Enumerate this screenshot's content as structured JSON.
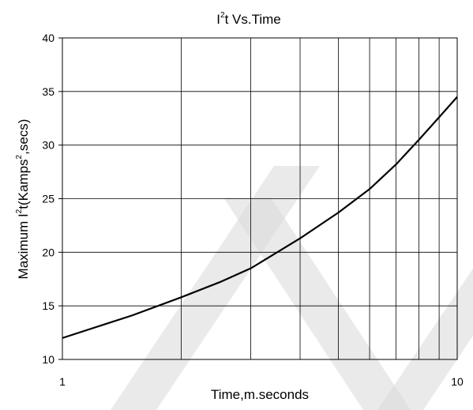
{
  "chart_data": {
    "type": "line",
    "title": {
      "base": "I",
      "sup": "2",
      "rest": "t  Vs.Time"
    },
    "xlabel": "Time,m.seconds",
    "ylabel": {
      "pre": "Maximum I",
      "sup1": "2",
      "mid": "t(Kamps",
      "sup2": "2",
      "post": ",secs)"
    },
    "xscale": "log",
    "xlim": [
      1,
      10
    ],
    "ylim": [
      10,
      40
    ],
    "xticks": [
      "1",
      "10"
    ],
    "yticks": [
      "10",
      "15",
      "20",
      "25",
      "30",
      "35",
      "40"
    ],
    "grid": true,
    "watermark_color": "#d9d9d9",
    "line_color": "#000000",
    "series": [
      {
        "x": [
          1,
          1.5,
          2,
          2.5,
          3,
          4,
          5,
          6,
          7,
          8,
          9,
          10
        ],
        "y": [
          12.0,
          14.1,
          15.8,
          17.2,
          18.5,
          21.3,
          23.7,
          25.9,
          28.2,
          30.5,
          32.6,
          34.5
        ]
      }
    ]
  }
}
